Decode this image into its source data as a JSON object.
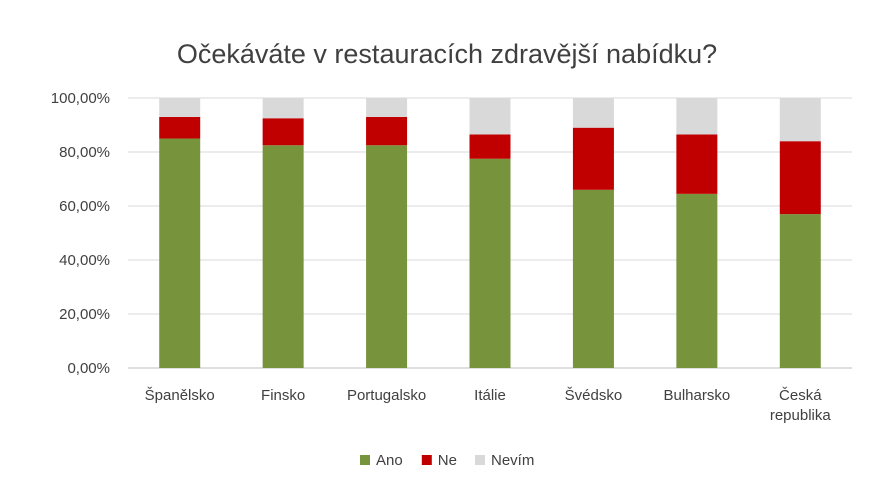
{
  "chart_data": {
    "type": "bar",
    "stacked": true,
    "title": "Očekáváte v restauracích zdravější nabídku?",
    "xlabel": "",
    "ylabel": "",
    "ylim": [
      0,
      100
    ],
    "yticks": [
      "0,00%",
      "20,00%",
      "40,00%",
      "60,00%",
      "80,00%",
      "100,00%"
    ],
    "grid": true,
    "legend_position": "bottom",
    "categories": [
      [
        "Španělsko"
      ],
      [
        "Finsko"
      ],
      [
        "Portugalsko"
      ],
      [
        "Itálie"
      ],
      [
        "Švédsko"
      ],
      [
        "Bulharsko"
      ],
      [
        "Česká",
        "republika"
      ]
    ],
    "series": [
      {
        "name": "Ano",
        "color": "#77933c",
        "values": [
          85,
          82.5,
          82.5,
          77.5,
          66,
          64.5,
          57
        ]
      },
      {
        "name": "Ne",
        "color": "#c00000",
        "values": [
          8,
          10,
          10.5,
          9,
          23,
          22,
          27
        ]
      },
      {
        "name": "Nevím",
        "color": "#d9d9d9",
        "values": [
          7,
          7.5,
          7,
          13.5,
          11,
          13.5,
          16
        ]
      }
    ]
  }
}
